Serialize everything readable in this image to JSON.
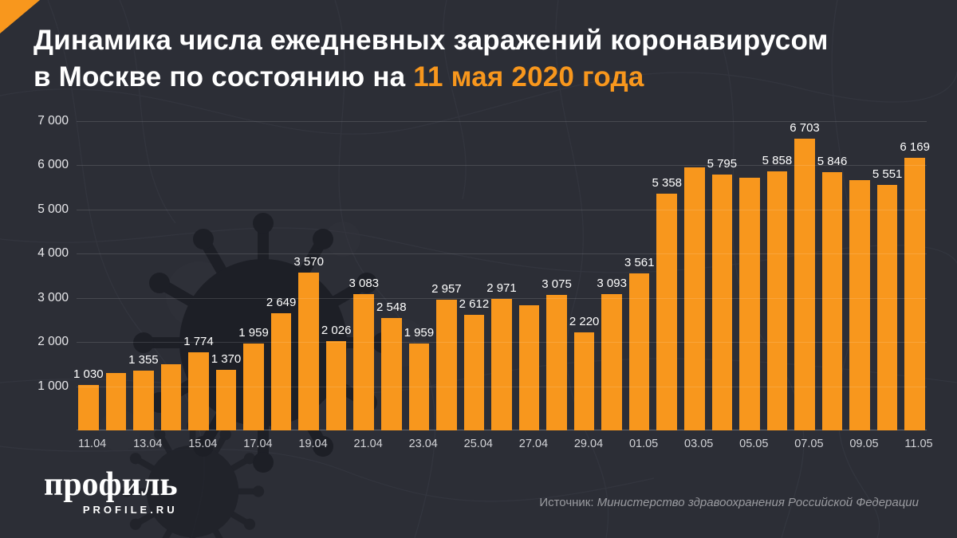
{
  "title": {
    "line1": "Динамика числа ежедневных заражений коронавирусом",
    "line2_prefix": "в Москве по состоянию на ",
    "line2_highlight": "11 мая 2020 года"
  },
  "chart_data": {
    "type": "bar",
    "title": "Динамика числа ежедневных заражений коронавирусом в Москве по состоянию на 11 мая 2020 года",
    "xlabel": "",
    "ylabel": "",
    "ylim": [
      0,
      7000
    ],
    "grid": "horizontal",
    "legend": null,
    "yticks": [
      {
        "value": 7000,
        "label": "7 000"
      },
      {
        "value": 6000,
        "label": "6 000"
      },
      {
        "value": 5000,
        "label": "5 000"
      },
      {
        "value": 4000,
        "label": "4 000"
      },
      {
        "value": 3000,
        "label": "3 000"
      },
      {
        "value": 2000,
        "label": "2 000"
      },
      {
        "value": 1000,
        "label": "1 000"
      }
    ],
    "categories": [
      "11.04",
      "12.04",
      "13.04",
      "14.04",
      "15.04",
      "16.04",
      "17.04",
      "18.04",
      "19.04",
      "20.04",
      "21.04",
      "22.04",
      "23.04",
      "24.04",
      "25.04",
      "26.04",
      "27.04",
      "28.04",
      "29.04",
      "30.04",
      "01.05",
      "02.05",
      "03.05",
      "04.05",
      "05.05",
      "06.05",
      "07.05",
      "08.05",
      "09.05",
      "10.05",
      "11.05"
    ],
    "values": [
      1030,
      1306,
      1355,
      1489,
      1774,
      1370,
      1959,
      2649,
      3570,
      2026,
      3083,
      2548,
      1959,
      2957,
      2612,
      2971,
      2838,
      3075,
      2220,
      3093,
      3561,
      5358,
      5948,
      5795,
      5714,
      5858,
      6703,
      5846,
      5667,
      5551,
      6169
    ],
    "value_labels": [
      "1 030",
      "",
      "1 355",
      "",
      "1 774",
      "1 370",
      "1 959",
      "2 649",
      "3 570",
      "2 026",
      "3 083",
      "2 548",
      "1 959",
      "2 957",
      "2 612",
      "2 971",
      "",
      "3 075",
      "2 220",
      "3 093",
      "3 561",
      "5 358",
      "",
      "5 795",
      "",
      "5 858",
      "6 703",
      "5 846",
      "",
      "5 551",
      "6 169"
    ],
    "x_tick_labels": [
      "11.04",
      "",
      "13.04",
      "",
      "15.04",
      "",
      "17.04",
      "",
      "19.04",
      "",
      "21.04",
      "",
      "23.04",
      "",
      "25.04",
      "",
      "27.04",
      "",
      "29.04",
      "",
      "01.05",
      "",
      "03.05",
      "",
      "05.05",
      "",
      "07.05",
      "",
      "09.05",
      "",
      "11.05"
    ]
  },
  "footer": {
    "logo_text": "профиль",
    "logo_sub": "PROFILE.RU",
    "source_prefix": "Источник: ",
    "source_name": "Министерство здравоохранения Российской Федерации"
  },
  "colors": {
    "accent": "#F8971D",
    "background": "#2C2E36",
    "grid": "#4A4C55",
    "text": "#FFFFFF",
    "muted_text": "#9A9BA0",
    "watermark": "#1D1F26"
  }
}
